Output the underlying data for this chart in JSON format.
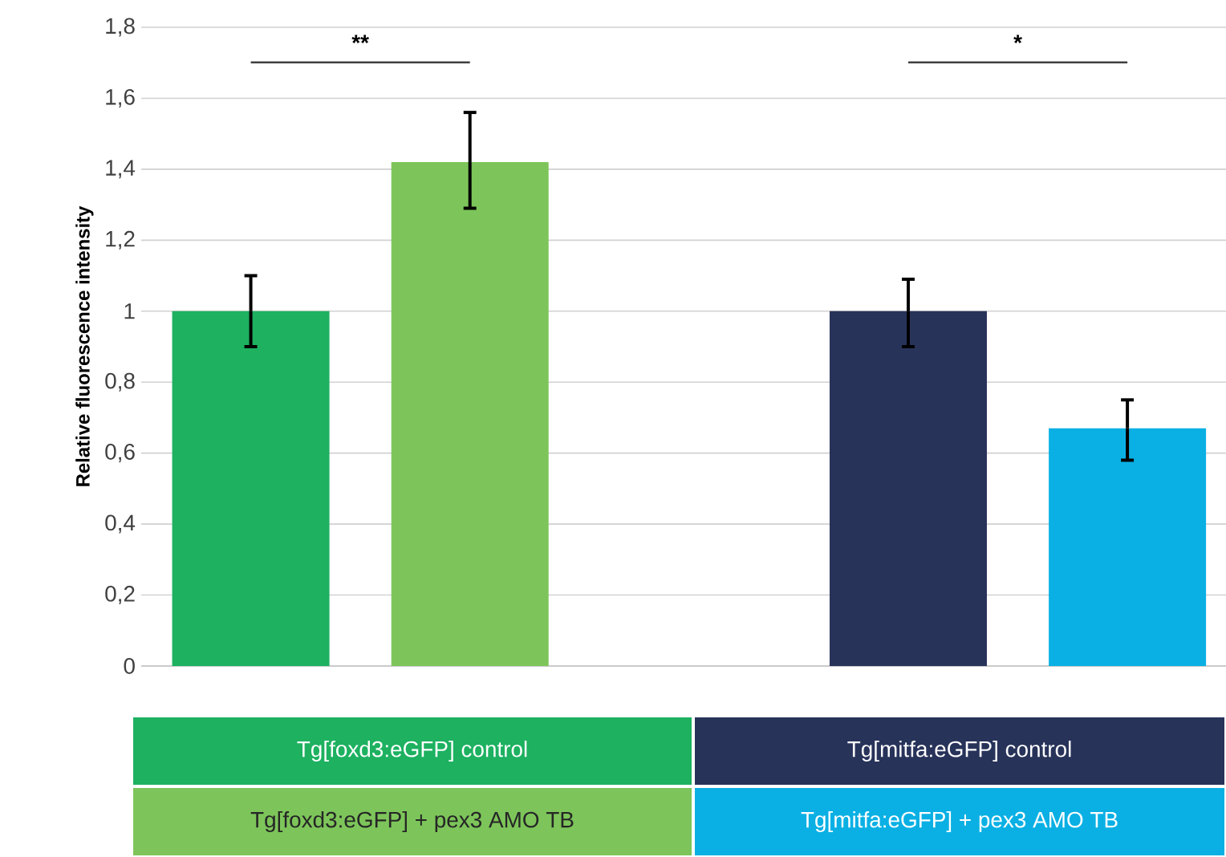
{
  "chart_data": {
    "type": "bar",
    "ylabel": "Relative fluorescence intensity",
    "categories": [
      null,
      null,
      null,
      null,
      null
    ],
    "series": [
      {
        "name": "Tg[foxd3:eGFP] control",
        "color": "#1db160",
        "values": [
          1.0,
          null,
          null,
          null,
          null
        ],
        "errors": [
          [
            0.9,
            1.1
          ],
          null,
          null,
          null,
          null
        ]
      },
      {
        "name": "Tg[foxd3:eGFP] + pex3 AMO TB",
        "color": "#7dc55a",
        "values": [
          null,
          1.42,
          null,
          null,
          null
        ],
        "errors": [
          null,
          [
            1.29,
            1.56
          ],
          null,
          null,
          null
        ]
      },
      {
        "name": "Tg[mitfa:eGFP] control",
        "color": "#28335a",
        "values": [
          null,
          null,
          null,
          1.0,
          null
        ],
        "errors": [
          null,
          null,
          null,
          [
            0.9,
            1.09
          ],
          null
        ]
      },
      {
        "name": "Tg[mitfa:eGFP] + pex3 AMO TB",
        "color": "#0ab0e4",
        "values": [
          null,
          null,
          null,
          null,
          0.67
        ],
        "errors": [
          null,
          null,
          null,
          null,
          [
            0.58,
            0.75
          ]
        ]
      }
    ],
    "ylim": [
      0,
      1.8
    ],
    "yticks": [
      0,
      {
        "value": 0.2,
        "label": "0,2"
      },
      {
        "value": 0.4,
        "label": "0,4"
      },
      {
        "value": 0.6,
        "label": "0,6"
      },
      {
        "value": 0.8,
        "label": "0,8"
      },
      1,
      {
        "value": 1.2,
        "label": "1,2"
      },
      {
        "value": 1.4,
        "label": "1,4"
      },
      {
        "value": 1.6,
        "label": "1,6"
      },
      {
        "value": 1.8,
        "label": "1,8"
      }
    ],
    "grid": "y",
    "legend": "bottom",
    "annotations": [
      "**",
      "*"
    ]
  }
}
